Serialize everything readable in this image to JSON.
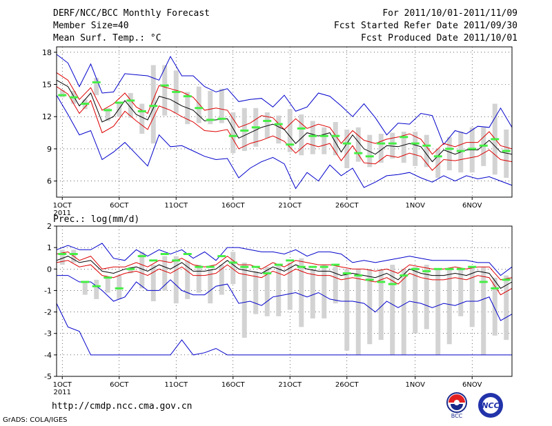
{
  "header": {
    "title": "DERF/NCC/BCC Monthly Forecast",
    "member_size": "Member Size=40",
    "variable1": "Mean Surf. Temp.: °C",
    "forecast_period": "For 2011/10/01-2011/11/09",
    "started": "Fcst Started Refer Date 2011/09/30",
    "produced": "Fcst Produced Date 2011/10/01"
  },
  "footer": {
    "url": "http://cmdp.ncc.cma.gov.cn",
    "credit": "GrADS: COLA/IGES",
    "logo1_label": "BCC",
    "logo2_label": "NCC"
  },
  "colors": {
    "ensemble_mean": "#000000",
    "spread": "#dd0000",
    "extremes": "#0000cc",
    "members_box": "#d3d3d3",
    "median": "#44ee44"
  },
  "chart_data": [
    {
      "type": "line",
      "name": "temperature",
      "title": "Mean Surf. Temp.: °C",
      "ylim": [
        4.5,
        18.5
      ],
      "yticks": [
        6,
        9,
        12,
        15,
        18
      ],
      "xticks": [
        {
          "day": 1,
          "label": "1OCT",
          "sub": "2011"
        },
        {
          "day": 6,
          "label": "6OCT"
        },
        {
          "day": 11,
          "label": "11OCT"
        },
        {
          "day": 16,
          "label": "16OCT"
        },
        {
          "day": 21,
          "label": "21OCT"
        },
        {
          "day": 26,
          "label": "26OCT"
        },
        {
          "day": 32,
          "label": "1NOV"
        },
        {
          "day": 37,
          "label": "6NOV"
        }
      ],
      "days": 40,
      "series": [
        {
          "name": "max",
          "color": "extremes",
          "values": [
            17.8,
            17.0,
            14.8,
            16.9,
            14.2,
            14.3,
            16.0,
            15.9,
            15.8,
            15.4,
            17.6,
            15.8,
            15.8,
            14.8,
            14.3,
            14.6,
            13.4,
            13.6,
            13.7,
            12.9,
            14.0,
            12.5,
            12.9,
            14.2,
            13.9,
            13.0,
            12.0,
            13.2,
            11.9,
            10.3,
            11.4,
            11.3,
            12.3,
            12.1,
            9.4,
            10.7,
            10.4,
            11.1,
            11.0,
            12.8,
            11.0
          ]
        },
        {
          "name": "upper",
          "color": "spread",
          "values": [
            16.1,
            15.4,
            13.6,
            14.7,
            12.6,
            13.2,
            14.2,
            12.9,
            12.3,
            14.9,
            14.6,
            14.3,
            13.8,
            12.6,
            12.8,
            12.6,
            11.0,
            11.4,
            12.1,
            11.9,
            10.8,
            11.8,
            10.9,
            11.3,
            11.0,
            9.5,
            10.7,
            9.8,
            9.5,
            9.9,
            10.1,
            10.4,
            9.9,
            8.5,
            9.5,
            9.2,
            9.6,
            9.6,
            10.6,
            9.3,
            9.0
          ]
        },
        {
          "name": "mean",
          "color": "ensemble_mean",
          "values": [
            15.4,
            14.8,
            13.0,
            14.2,
            11.5,
            12.0,
            13.5,
            12.2,
            11.7,
            13.9,
            13.6,
            13.0,
            12.6,
            11.6,
            11.7,
            11.8,
            10.0,
            10.5,
            11.0,
            11.3,
            10.8,
            9.5,
            10.5,
            10.2,
            10.5,
            8.7,
            10.3,
            9.0,
            8.5,
            9.3,
            9.2,
            9.5,
            9.2,
            7.8,
            8.9,
            8.5,
            8.9,
            8.9,
            9.8,
            8.7,
            8.5
          ]
        },
        {
          "name": "lower",
          "color": "spread",
          "values": [
            14.8,
            14.1,
            12.3,
            13.5,
            10.5,
            11.1,
            12.5,
            11.6,
            10.8,
            13.0,
            12.6,
            12.0,
            11.5,
            10.7,
            10.6,
            10.8,
            9.0,
            9.5,
            9.8,
            10.2,
            9.7,
            8.6,
            9.5,
            9.2,
            9.5,
            7.9,
            9.3,
            7.7,
            7.6,
            8.4,
            8.2,
            8.6,
            8.3,
            7.0,
            8.0,
            7.9,
            8.1,
            8.3,
            8.9,
            8.0,
            7.8
          ]
        },
        {
          "name": "min",
          "color": "extremes",
          "values": [
            14.0,
            12.2,
            10.3,
            10.7,
            8.0,
            8.7,
            9.6,
            8.5,
            7.4,
            10.3,
            9.2,
            9.3,
            8.8,
            8.3,
            8.0,
            8.1,
            6.3,
            7.2,
            7.8,
            8.2,
            7.6,
            5.3,
            6.8,
            6.0,
            7.5,
            6.5,
            7.2,
            5.4,
            5.9,
            6.5,
            6.6,
            6.8,
            6.3,
            5.9,
            6.5,
            6.0,
            6.5,
            6.2,
            6.4,
            6.0,
            5.6
          ]
        }
      ],
      "members_range": [
        [
          13.8,
          14.5
        ],
        [
          13.2,
          14.4
        ],
        [
          12.7,
          13.6
        ],
        [
          14.0,
          15.6
        ],
        [
          11.6,
          12.8
        ],
        [
          12.0,
          13.4
        ],
        [
          11.9,
          14.2
        ],
        [
          10.4,
          13.2
        ],
        [
          9.5,
          16.8
        ],
        [
          12.1,
          16.8
        ],
        [
          12.3,
          16.3
        ],
        [
          11.3,
          14.3
        ],
        [
          11.4,
          14.8
        ],
        [
          11.3,
          14.4
        ],
        [
          11.4,
          14.6
        ],
        [
          8.6,
          12.4
        ],
        [
          8.8,
          12.8
        ],
        [
          9.2,
          12.8
        ],
        [
          10.0,
          12.4
        ],
        [
          9.5,
          12.1
        ],
        [
          8.7,
          12.7
        ],
        [
          8.4,
          12.2
        ],
        [
          8.5,
          11.6
        ],
        [
          8.5,
          11.0
        ],
        [
          8.4,
          11.5
        ],
        [
          7.2,
          10.8
        ],
        [
          7.8,
          11.0
        ],
        [
          7.3,
          10.3
        ],
        [
          7.7,
          10.4
        ],
        [
          8.1,
          10.5
        ],
        [
          7.7,
          10.6
        ],
        [
          7.4,
          10.6
        ],
        [
          7.3,
          10.3
        ],
        [
          6.3,
          9.0
        ],
        [
          7.0,
          10.1
        ],
        [
          6.8,
          10.6
        ],
        [
          6.8,
          11.0
        ],
        [
          7.4,
          11.0
        ],
        [
          6.6,
          13.2
        ],
        [
          6.3,
          10.8
        ]
      ],
      "medians": [
        14.0,
        13.8,
        13.2,
        15.2,
        12.6,
        13.3,
        13.5,
        12.5,
        13.0,
        14.9,
        14.3,
        13.9,
        12.8,
        11.7,
        11.8,
        10.2,
        10.7,
        11.0,
        11.6,
        11.3,
        9.4,
        10.9,
        10.2,
        10.2,
        10.2,
        9.5,
        8.6,
        8.3,
        9.5,
        9.5,
        10.1,
        9.5,
        9.3,
        8.3,
        9.0,
        8.8,
        9.0,
        9.3,
        9.9,
        8.8
      ]
    },
    {
      "type": "line",
      "name": "precipitation",
      "title": "Prec.: log(mm/d)",
      "ylim": [
        -5,
        2
      ],
      "yticks": [
        -5,
        -4,
        -3,
        -2,
        -1,
        0,
        1,
        2
      ],
      "xticks": [
        {
          "day": 1,
          "label": "1OCT",
          "sub": "2011"
        },
        {
          "day": 6,
          "label": "6OCT"
        },
        {
          "day": 11,
          "label": "11OCT"
        },
        {
          "day": 16,
          "label": "16OCT"
        },
        {
          "day": 21,
          "label": "21OCT"
        },
        {
          "day": 26,
          "label": "26OCT"
        },
        {
          "day": 32,
          "label": "1NOV"
        },
        {
          "day": 37,
          "label": "6NOV"
        }
      ],
      "days": 40,
      "series": [
        {
          "name": "max",
          "color": "extremes",
          "values": [
            0.9,
            1.1,
            0.9,
            0.9,
            1.2,
            0.5,
            0.4,
            0.9,
            0.6,
            0.9,
            0.7,
            0.9,
            0.5,
            0.8,
            0.4,
            1.0,
            1.0,
            0.9,
            0.8,
            0.8,
            0.7,
            0.9,
            0.6,
            0.8,
            0.8,
            0.7,
            0.3,
            0.4,
            0.3,
            0.4,
            0.5,
            0.6,
            0.5,
            0.4,
            0.4,
            0.4,
            0.4,
            0.3,
            0.3,
            -0.3,
            0.1
          ]
        },
        {
          "name": "upper",
          "color": "spread",
          "values": [
            0.7,
            0.8,
            0.4,
            0.6,
            0.0,
            0.1,
            0.1,
            0.3,
            0.1,
            0.4,
            0.3,
            0.5,
            0.2,
            0.1,
            0.2,
            0.6,
            0.2,
            0.2,
            0.0,
            0.3,
            0.1,
            0.4,
            0.3,
            0.2,
            0.2,
            0.1,
            0.0,
            0.0,
            -0.1,
            0.0,
            -0.2,
            0.2,
            0.1,
            0.0,
            0.0,
            0.1,
            0.0,
            0.1,
            0.1,
            -0.5,
            -0.4
          ]
        },
        {
          "name": "mean",
          "color": "ensemble_mean",
          "values": [
            0.4,
            0.6,
            0.3,
            0.4,
            -0.1,
            -0.2,
            0.0,
            0.1,
            -0.1,
            0.2,
            0.0,
            0.3,
            -0.1,
            -0.1,
            0.0,
            0.4,
            0.0,
            -0.1,
            -0.2,
            0.1,
            -0.1,
            0.2,
            0.0,
            -0.1,
            -0.1,
            -0.3,
            -0.2,
            -0.3,
            -0.4,
            -0.2,
            -0.5,
            0.0,
            -0.2,
            -0.3,
            -0.3,
            -0.2,
            -0.3,
            -0.1,
            -0.2,
            -0.9,
            -0.6
          ]
        },
        {
          "name": "lower",
          "color": "spread",
          "values": [
            0.3,
            0.4,
            0.1,
            0.2,
            -0.3,
            -0.4,
            -0.2,
            -0.1,
            -0.3,
            0.0,
            -0.2,
            0.1,
            -0.3,
            -0.3,
            -0.2,
            0.2,
            -0.2,
            -0.3,
            -0.4,
            -0.1,
            -0.3,
            0.0,
            -0.2,
            -0.3,
            -0.3,
            -0.5,
            -0.4,
            -0.5,
            -0.6,
            -0.4,
            -0.7,
            -0.2,
            -0.4,
            -0.5,
            -0.5,
            -0.4,
            -0.5,
            -0.3,
            -0.4,
            -1.2,
            -0.9
          ]
        },
        {
          "name": "min",
          "color": "extremes",
          "values": [
            -0.3,
            -0.3,
            -0.6,
            -0.6,
            -1.0,
            -1.5,
            -1.3,
            -0.6,
            -1.0,
            -1.0,
            -0.5,
            -1.0,
            -1.2,
            -1.2,
            -0.8,
            -0.7,
            -1.6,
            -1.5,
            -1.7,
            -1.3,
            -1.2,
            -1.1,
            -1.3,
            -1.1,
            -1.4,
            -1.5,
            -1.5,
            -1.6,
            -2.0,
            -1.5,
            -1.8,
            -1.5,
            -1.6,
            -1.8,
            -1.6,
            -1.7,
            -1.5,
            -1.5,
            -1.3,
            -2.4,
            -2.1
          ]
        },
        {
          "name": "bottom",
          "color": "extremes",
          "values": [
            -1.6,
            -2.7,
            -2.9,
            -4.0,
            -4.0,
            -4.0,
            -4.0,
            -4.0,
            -4.0,
            -4.0,
            -4.0,
            -3.3,
            -4.0,
            -3.9,
            -3.7,
            -4.0,
            -4.0,
            -4.0,
            -4.0,
            -4.0,
            -4.0,
            -4.0,
            -4.0,
            -4.0,
            -4.0,
            -4.0,
            -4.0,
            -4.0,
            -4.0,
            -4.0,
            -4.0,
            -4.0,
            -4.0,
            -4.0,
            -4.0,
            -4.0,
            -4.0,
            -4.0,
            -4.0,
            -4.0,
            -4.0
          ]
        }
      ],
      "members_range": [
        [
          0.2,
          0.9
        ],
        [
          0.3,
          0.9
        ],
        [
          -1.2,
          -0.6
        ],
        [
          -1.4,
          -0.5
        ],
        [
          -1.1,
          -0.4
        ],
        [
          -1.4,
          -0.3
        ],
        [
          -0.2,
          0.1
        ],
        [
          -0.9,
          0.8
        ],
        [
          -1.5,
          0.2
        ],
        [
          -1.0,
          0.6
        ],
        [
          -1.6,
          0.6
        ],
        [
          -1.4,
          0.4
        ],
        [
          -1.1,
          0.2
        ],
        [
          -1.6,
          0.0
        ],
        [
          -1.2,
          0.2
        ],
        [
          -0.7,
          0.8
        ],
        [
          -3.2,
          0.3
        ],
        [
          -2.1,
          -0.1
        ],
        [
          -2.2,
          0.1
        ],
        [
          -2.2,
          0.2
        ],
        [
          -1.9,
          0.3
        ],
        [
          -2.7,
          0.5
        ],
        [
          -2.3,
          0.0
        ],
        [
          -2.3,
          0.2
        ],
        [
          -1.6,
          0.1
        ],
        [
          -3.8,
          0.0
        ],
        [
          -4.0,
          0.0
        ],
        [
          -3.5,
          0.0
        ],
        [
          -3.3,
          0.0
        ],
        [
          -4.0,
          0.2
        ],
        [
          -4.0,
          0.0
        ],
        [
          -3.0,
          0.1
        ],
        [
          -2.8,
          0.2
        ],
        [
          -4.0,
          0.0
        ],
        [
          -3.5,
          0.0
        ],
        [
          -2.2,
          0.0
        ],
        [
          -2.7,
          0.1
        ],
        [
          -4.0,
          0.1
        ],
        [
          -3.1,
          -0.4
        ],
        [
          -3.3,
          -0.3
        ]
      ],
      "medians": [
        0.7,
        0.7,
        -0.6,
        -0.8,
        -0.4,
        -0.9,
        0.0,
        0.6,
        0.4,
        0.7,
        0.4,
        0.7,
        0.1,
        0.1,
        0.6,
        0.3,
        0.1,
        0.1,
        -0.2,
        0.2,
        0.4,
        0.1,
        0.1,
        0.1,
        0.2,
        -0.2,
        -0.3,
        -0.5,
        -0.6,
        -0.7,
        -0.3,
        0.0,
        -0.1,
        0.0,
        0.0,
        0.0,
        0.1,
        -0.6,
        -0.9,
        -0.5
      ]
    }
  ]
}
